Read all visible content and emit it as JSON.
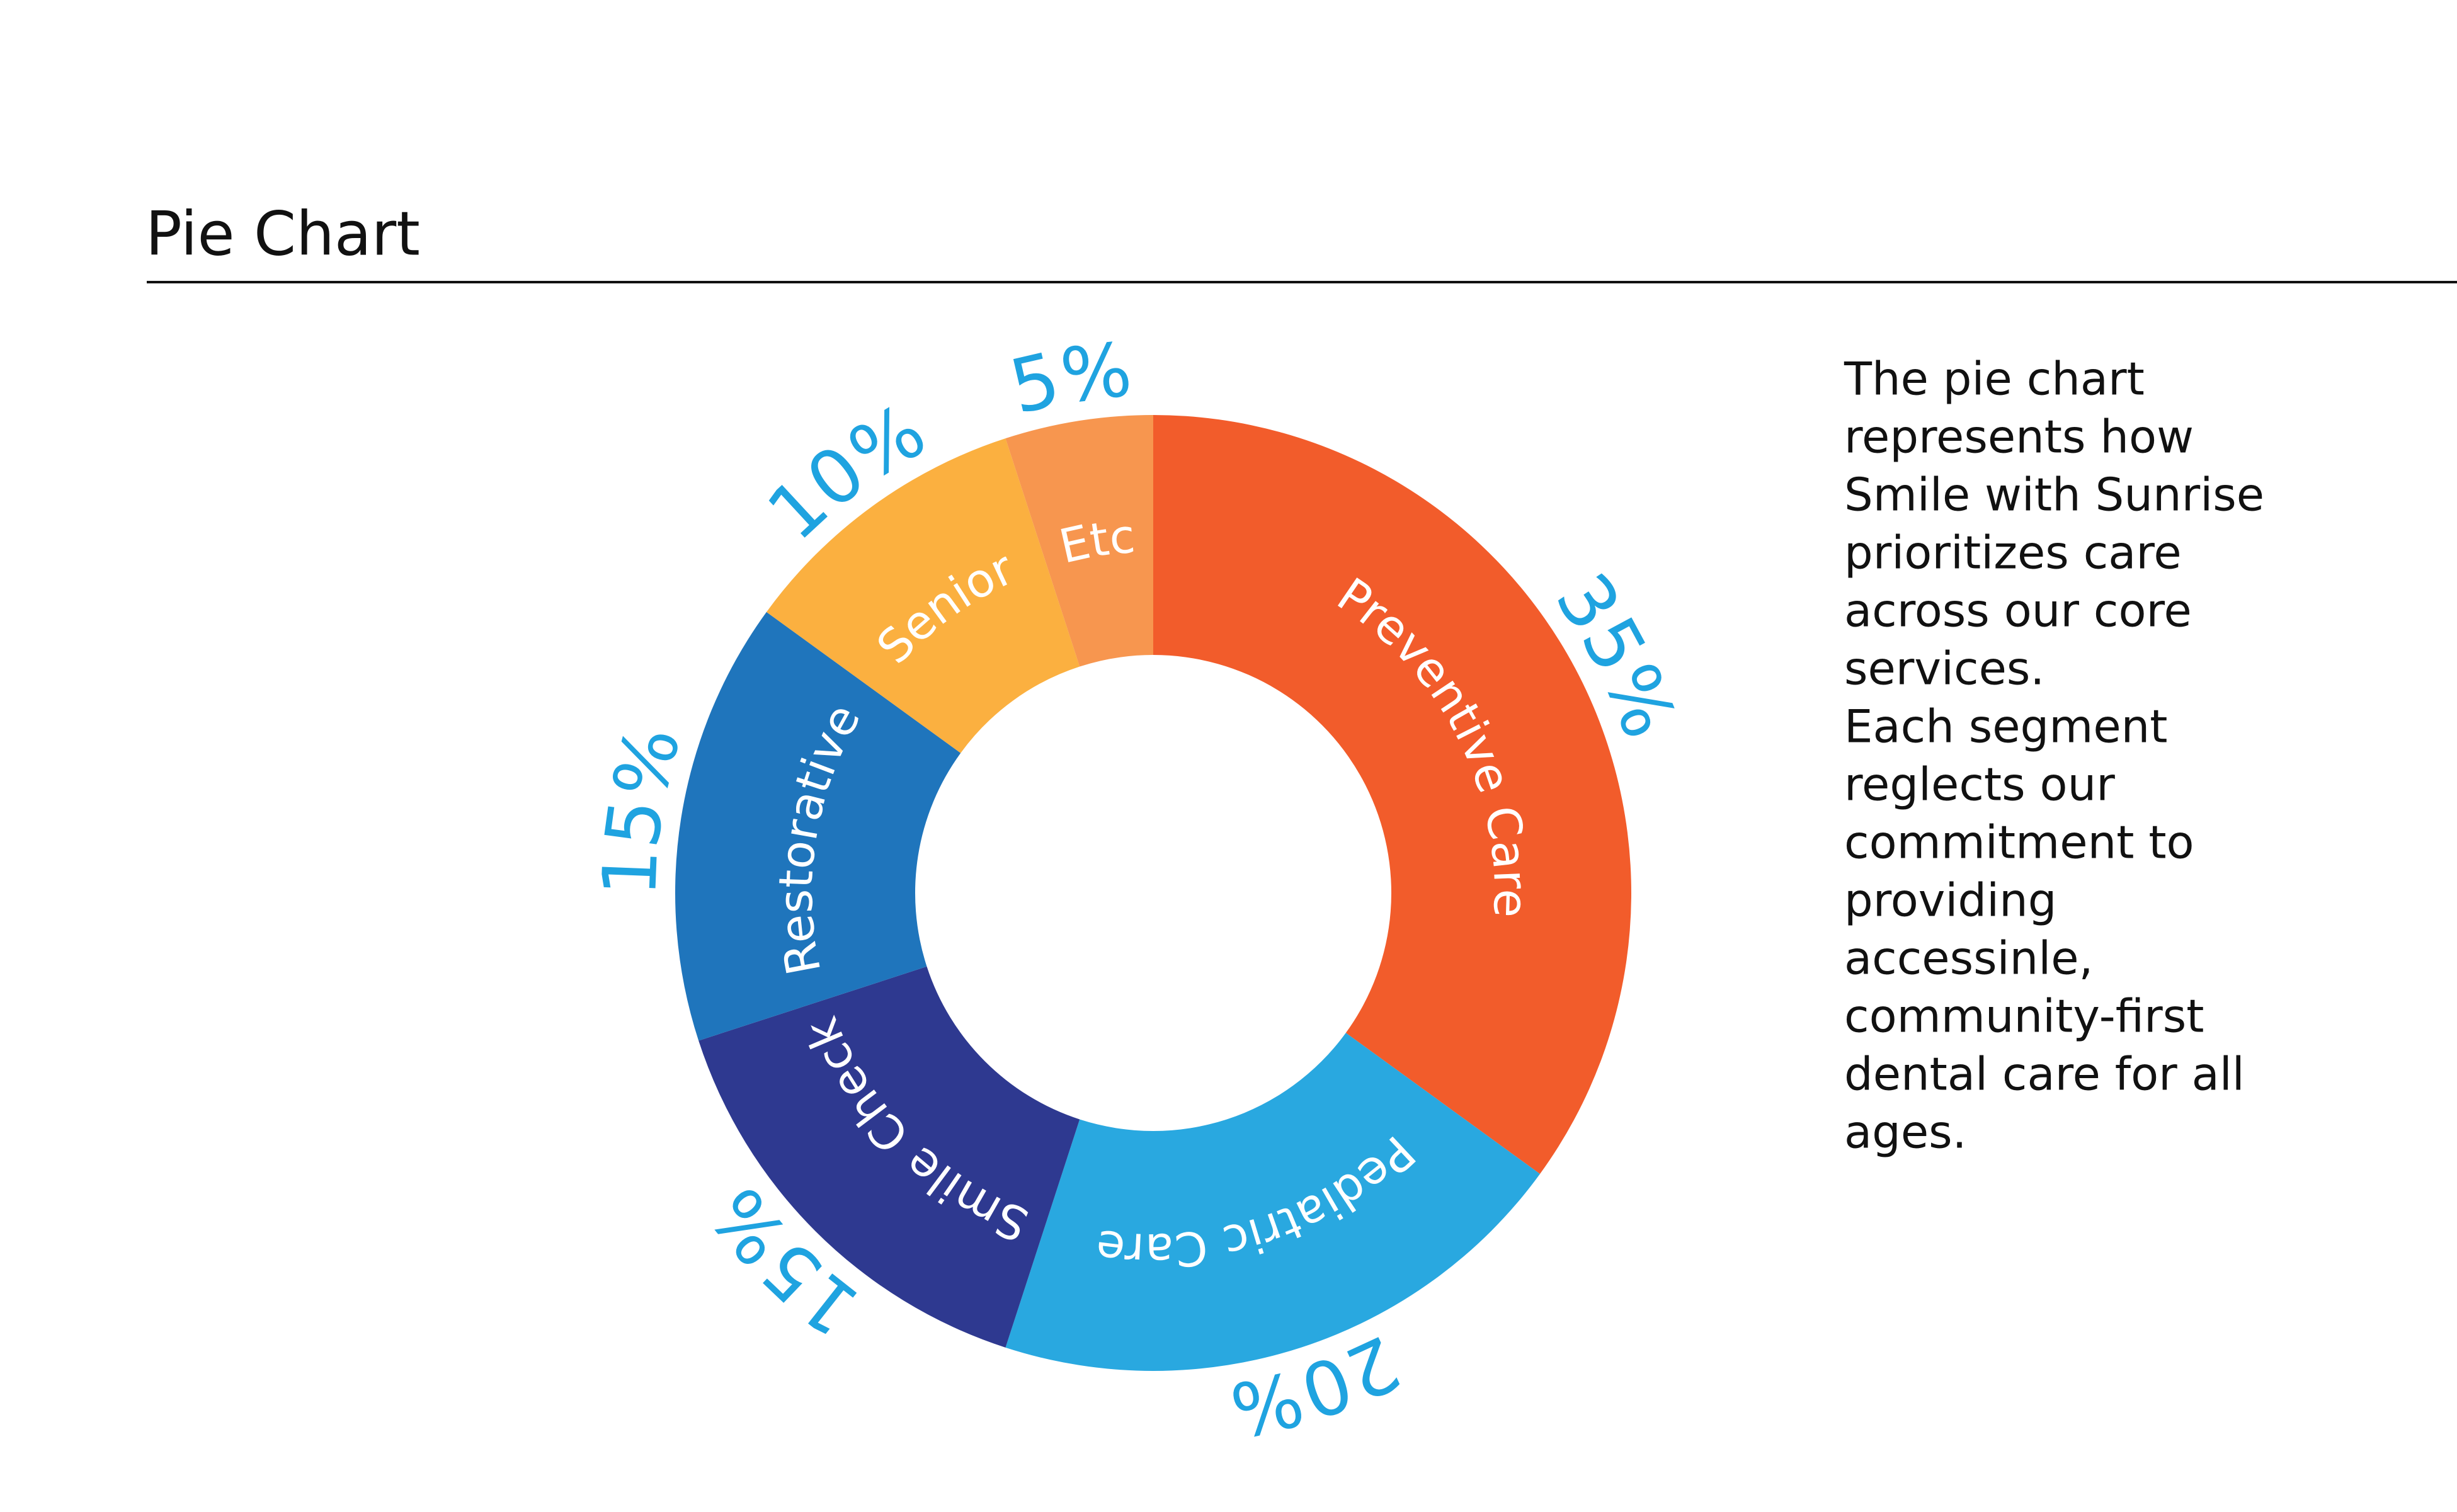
{
  "chart_data": {
    "type": "pie",
    "title": "Pie Chart",
    "categories": [
      "Preventive Care",
      "Pediatric Care",
      "Smile Check",
      "Restorative",
      "Senior",
      "Etc"
    ],
    "values": [
      35,
      20,
      15,
      15,
      10,
      5
    ],
    "value_labels": [
      "35%",
      "20%",
      "15%",
      "15%",
      "10%",
      "5%"
    ],
    "colors": [
      "#f25c2b",
      "#29a8e0",
      "#2e3990",
      "#1f75bc",
      "#fbb040",
      "#f7964f"
    ],
    "donut": true
  },
  "description_lines": [
    "The pie chart",
    "represents how",
    "Smile with Sunrise",
    "prioritizes care",
    "across our core",
    "services.",
    "Each segment",
    "reglects our",
    "commitment to",
    "providing",
    "accessinle,",
    "community-first",
    "dental care for all",
    "ages."
  ]
}
